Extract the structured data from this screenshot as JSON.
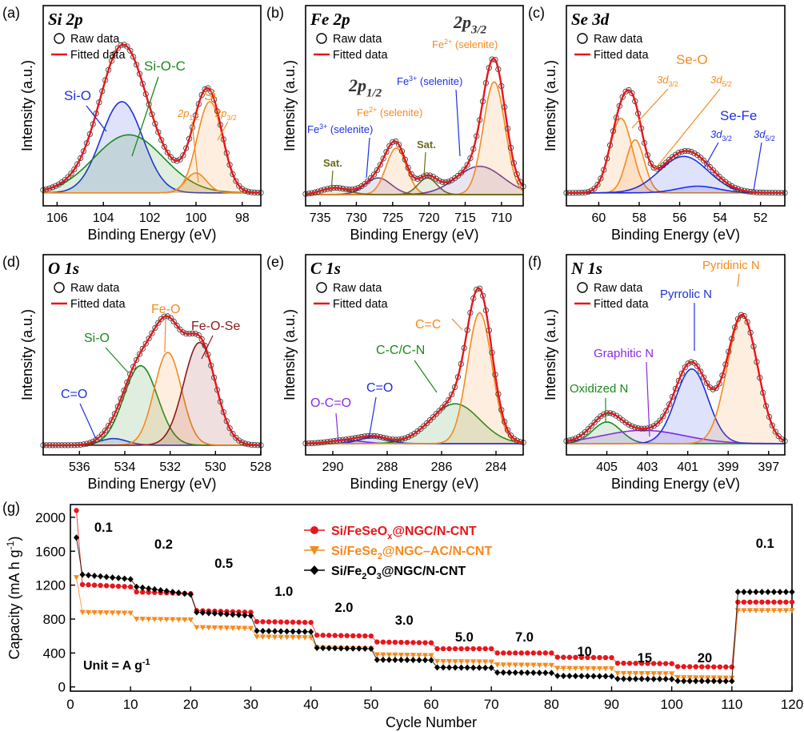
{
  "colors": {
    "red": "#e8161b",
    "orange": "#f58a1f",
    "green": "#1b8a1b",
    "blue": "#1f2fe0",
    "purple": "#8a2be2",
    "violet": "#6a3d9a",
    "olive": "#6b6b1a",
    "maroon": "#8b1a1a",
    "black": "#000000"
  },
  "legend_common": {
    "raw": "Raw data",
    "fitted": "Fitted data"
  },
  "panels": [
    {
      "id": "a",
      "tag": "(a)",
      "title": "Si 2p",
      "xlabel": "Binding Energy (eV)",
      "ylabel": "Intensity (a.u.)",
      "xlim": [
        106.6,
        97.2
      ],
      "xticks": [
        "106",
        "104",
        "102",
        "100",
        "98"
      ],
      "labels": {
        "sio": "Si-O",
        "sioc": "Si-O-C",
        "si": "Si",
        "p12": "2p",
        "p12sub": "1/2",
        "p32": "2p",
        "p32sub": "3/2"
      }
    },
    {
      "id": "b",
      "tag": "(b)",
      "title": "Fe 2p",
      "xlabel": "Binding Energy (eV)",
      "ylabel": "Intensity (a.u.)",
      "xlim": [
        737,
        707
      ],
      "xticks": [
        "735",
        "730",
        "725",
        "720",
        "715",
        "710"
      ],
      "labels": {
        "p32": "2p",
        "p32sub": "3/2",
        "p12": "2p",
        "p12sub": "1/2",
        "fe2a": "Fe",
        "fe2a_sup": "2+",
        "fe2a_rest": " (selenite)",
        "fe3a": "Fe",
        "fe3a_sup": "3+",
        "fe3a_rest": " (selenite)",
        "fe2b": "Fe",
        "fe2b_sup": "2+",
        "fe2b_rest": " (selenite)",
        "fe3b": "Fe",
        "fe3b_sup": "3+",
        "fe3b_rest": " (selenite)",
        "sat1": "Sat.",
        "sat2": "Sat."
      }
    },
    {
      "id": "c",
      "tag": "(c)",
      "title": "Se 3d",
      "xlabel": "Binding Energy (eV)",
      "ylabel": "Intensity (a.u.)",
      "xlim": [
        61.6,
        50.8
      ],
      "xticks": [
        "60",
        "58",
        "56",
        "54",
        "52"
      ],
      "labels": {
        "seo": "Se-O",
        "sefe": "Se-Fe",
        "d32": "3d",
        "d32sub": "3/2",
        "d52": "3d",
        "d52sub": "5/2",
        "d32b": "3d",
        "d32bsub": "3/2",
        "d52b": "3d",
        "d52bsub": "5/2"
      }
    },
    {
      "id": "d",
      "tag": "(d)",
      "title": "O 1s",
      "xlabel": "Binding Energy (eV)",
      "ylabel": "Intensity (a.u.)",
      "xlim": [
        537.6,
        528
      ],
      "xticks": [
        "536",
        "534",
        "532",
        "530",
        "528"
      ],
      "labels": {
        "co": "C=O",
        "sio": "Si-O",
        "feo": "Fe-O",
        "feose": "Fe-O-Se"
      }
    },
    {
      "id": "e",
      "tag": "(e)",
      "title": "C 1s",
      "xlabel": "Binding Energy (eV)",
      "ylabel": "Intensity (a.u.)",
      "xlim": [
        291,
        283
      ],
      "xticks": [
        "290",
        "288",
        "286",
        "284"
      ],
      "labels": {
        "cc": "C=C",
        "ccn": "C-C/C-N",
        "co": "C=O",
        "oco": "O-C=O"
      }
    },
    {
      "id": "f",
      "tag": "(f)",
      "title": "N 1s",
      "xlabel": "Binding Energy (eV)",
      "ylabel": "Intensity (a.u.)",
      "xlim": [
        407,
        396.2
      ],
      "xticks": [
        "405",
        "403",
        "401",
        "399",
        "397"
      ],
      "labels": {
        "pyridinic": "Pyridinic N",
        "pyrrolic": "Pyrrolic N",
        "graphitic": "Graphitic N",
        "oxidized": "Oxidized N"
      }
    }
  ],
  "chart_data": {
    "type": "scatter",
    "tag": "(g)",
    "xlabel": "Cycle Number",
    "ylabel_main": "Capacity (mA h g",
    "ylabel_sup": "-1",
    "ylabel_end": ")",
    "xlim": [
      0,
      120
    ],
    "ylim": [
      -50,
      2150
    ],
    "xticks": [
      0,
      10,
      20,
      30,
      40,
      50,
      60,
      70,
      80,
      90,
      100,
      110,
      120
    ],
    "yticks": [
      0,
      400,
      800,
      1200,
      1600,
      2000
    ],
    "unit_text": "Unit = A g",
    "unit_sup": "-1",
    "rate_labels": [
      "0.1",
      "0.2",
      "0.5",
      "1.0",
      "2.0",
      "3.0",
      "5.0",
      "7.0",
      "10",
      "15",
      "20",
      "0.1"
    ],
    "segments": [
      [
        1,
        10
      ],
      [
        11,
        20
      ],
      [
        21,
        30
      ],
      [
        31,
        40
      ],
      [
        41,
        50
      ],
      [
        51,
        60
      ],
      [
        61,
        70
      ],
      [
        71,
        80
      ],
      [
        81,
        90
      ],
      [
        91,
        100
      ],
      [
        101,
        110
      ],
      [
        111,
        120
      ]
    ],
    "series": [
      {
        "name": "Si/FeSeOx@NGC/N-CNT",
        "name_main": "Si/FeSeO",
        "name_sub": "x",
        "name_rest": "@NGC/N-CNT",
        "color": "#e8161b",
        "marker": "circle",
        "first": 2080,
        "seg_start": [
          1210,
          1120,
          900,
          770,
          610,
          530,
          450,
          400,
          350,
          280,
          240,
          1000
        ],
        "seg_end": [
          1180,
          1100,
          880,
          760,
          600,
          520,
          450,
          400,
          345,
          275,
          235,
          1000
        ]
      },
      {
        "name": "Si/FeSe2@NGC–AC/N-CNT",
        "name_main": "Si/FeSe",
        "name_sub": "2",
        "name_rest": "@NGC–AC/N-CNT",
        "color": "#f58a1f",
        "marker": "triangle",
        "first": 1290,
        "seg_start": [
          880,
          800,
          700,
          590,
          460,
          380,
          300,
          260,
          220,
          160,
          110,
          900
        ],
        "seg_end": [
          870,
          790,
          690,
          580,
          450,
          370,
          295,
          255,
          215,
          155,
          105,
          900
        ]
      },
      {
        "name": "Si/Fe2O3@NGC/N-CNT",
        "name_main": "Si/Fe",
        "name_sub": "2",
        "name_mid": "O",
        "name_sub2": "3",
        "name_rest": "@NGC/N-CNT",
        "color": "#000000",
        "marker": "diamond",
        "first": 1760,
        "seg_start": [
          1330,
          1180,
          880,
          660,
          460,
          320,
          230,
          170,
          130,
          95,
          70,
          1120
        ],
        "seg_end": [
          1270,
          1090,
          840,
          650,
          450,
          315,
          225,
          165,
          125,
          92,
          68,
          1120
        ]
      }
    ]
  }
}
